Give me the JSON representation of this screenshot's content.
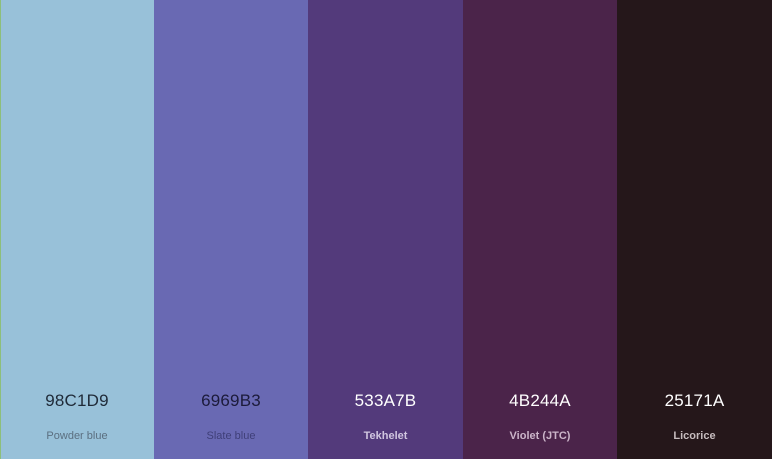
{
  "palette": {
    "swatches": [
      {
        "hex": "98C1D9",
        "name": "Powder blue",
        "color": "#98C1D9"
      },
      {
        "hex": "6969B3",
        "name": "Slate blue",
        "color": "#6969B3"
      },
      {
        "hex": "533A7B",
        "name": "Tekhelet",
        "color": "#533A7B"
      },
      {
        "hex": "4B244A",
        "name": "Violet (JTC)",
        "color": "#4B244A"
      },
      {
        "hex": "25171A",
        "name": "Licorice",
        "color": "#25171A"
      }
    ]
  }
}
